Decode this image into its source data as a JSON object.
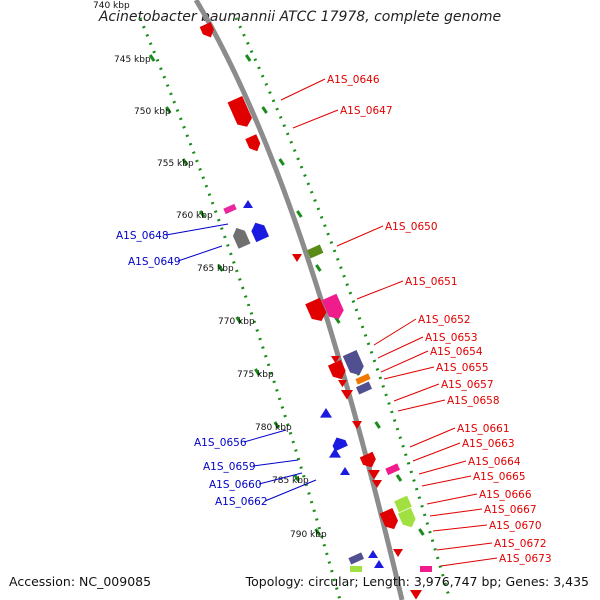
{
  "title": "Acinetobacter baumannii ATCC 17978, complete genome",
  "footer": {
    "accession": "Accession: NC_009085",
    "summary": "Topology: circular; Length: 3,976,747 bp; Genes: 3,435"
  },
  "scale_labels": [
    "740 kbp",
    "745 kbp",
    "750 kbp",
    "755 kbp",
    "760 kbp",
    "765 kbp",
    "770 kbp",
    "775 kbp",
    "780 kbp",
    "785 kbp",
    "790 kbp"
  ],
  "colors": {
    "backbone": "#8c8c8c",
    "scale_ticks": "#1a8c1a",
    "forward_label": "#e00000",
    "reverse_label": "#0000c8"
  },
  "gene_labels_forward": [
    "A1S_0646",
    "A1S_0647",
    "A1S_0650",
    "A1S_0651",
    "A1S_0652",
    "A1S_0653",
    "A1S_0654",
    "A1S_0655",
    "A1S_0657",
    "A1S_0658",
    "A1S_0661",
    "A1S_0663",
    "A1S_0664",
    "A1S_0665",
    "A1S_0666",
    "A1S_0667",
    "A1S_0670",
    "A1S_0672",
    "A1S_0673"
  ],
  "gene_labels_reverse": [
    "A1S_0648",
    "A1S_0649",
    "A1S_0656",
    "A1S_0659",
    "A1S_0660",
    "A1S_0662"
  ]
}
